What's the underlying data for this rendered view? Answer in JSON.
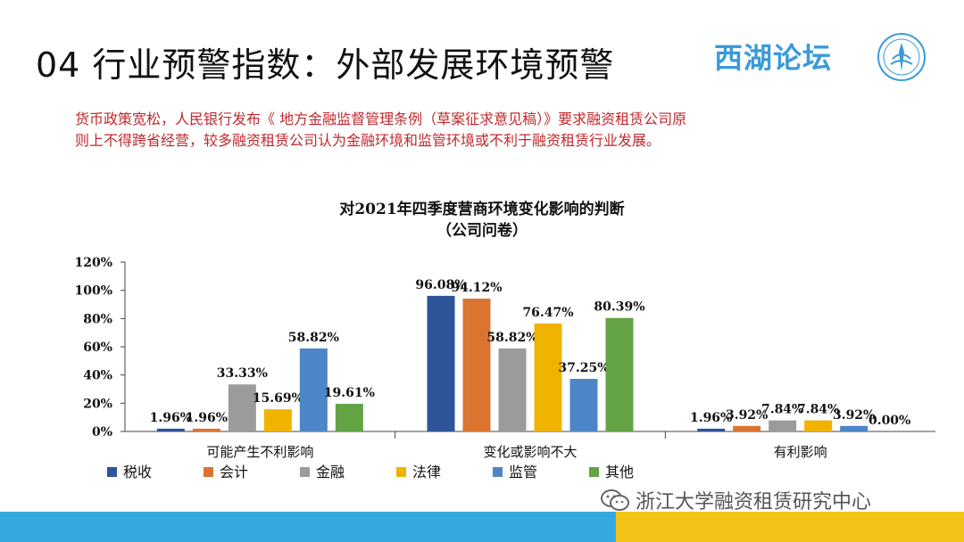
{
  "slide": {
    "title": "04 行业预警指数：外部发展环境预警",
    "brand": "西湖论坛",
    "intro_line1": "货币政策宽松，人民银行发布《 地方金融监督管理条例（草案征求意见稿）》要求融资租赁公司原",
    "intro_line2": "则上不得跨省经营，较多融资租赁公司认为金融环境和监管环境或不利于融资租赁行业发展。",
    "watermark": "浙江大学融资租赁研究中心"
  },
  "colors": {
    "title_red": "#c0282d",
    "brand_blue": "#3a9ad9",
    "footer_blue": "#35a8e0",
    "footer_yellow": "#f3c316"
  },
  "icons": {
    "logo": "emblem-icon",
    "watermark": "wechat-icon"
  },
  "chart_data": {
    "type": "bar",
    "title": "对2021年四季度营商环境变化影响的判断",
    "subtitle": "（公司问卷）",
    "categories": [
      "可能产生不利影响",
      "变化或影响不大",
      "有利影响"
    ],
    "series": [
      {
        "name": "税收",
        "color": "#2e5597",
        "values": [
          1.96,
          96.08,
          1.96
        ]
      },
      {
        "name": "会计",
        "color": "#db7430",
        "values": [
          1.96,
          94.12,
          3.92
        ]
      },
      {
        "name": "金融",
        "color": "#9b9b9b",
        "values": [
          33.33,
          58.82,
          7.84
        ]
      },
      {
        "name": "法律",
        "color": "#f0b400",
        "values": [
          15.69,
          76.47,
          7.84
        ]
      },
      {
        "name": "监管",
        "color": "#4d86c6",
        "values": [
          58.82,
          37.25,
          3.92
        ]
      },
      {
        "name": "其他",
        "color": "#62a343",
        "values": [
          19.61,
          80.39,
          0.0
        ]
      }
    ],
    "ylim": [
      0,
      120
    ],
    "yticks": [
      "0%",
      "20%",
      "40%",
      "60%",
      "80%",
      "100%",
      "120%"
    ],
    "xlabel": "",
    "ylabel": "",
    "grid": false,
    "legend": "bottom"
  }
}
